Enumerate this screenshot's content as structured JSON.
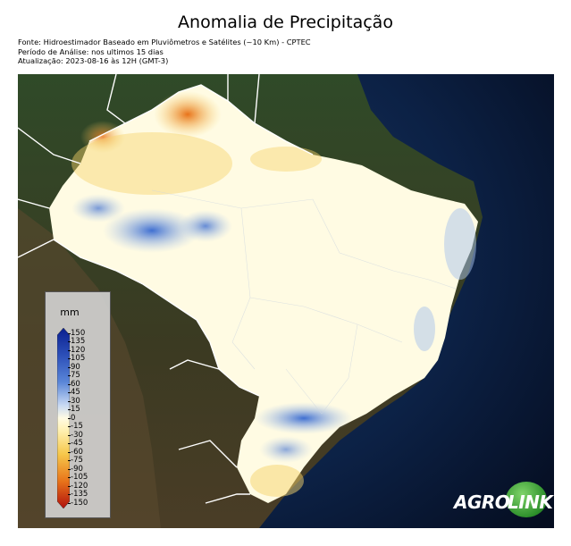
{
  "title": "Anomalia de Precipitação",
  "meta": {
    "source": "Fonte: Hidroestimador Baseado em Pluviômetros e Satélites (~10 Km) - CPTEC",
    "period": "Período de Análise: nos ultimos 15 dias",
    "updated": "Atualização: 2023-08-16 às 12H (GMT-3)"
  },
  "legend": {
    "unit": "mm",
    "ticks": [
      "150",
      "135",
      "120",
      "105",
      "90",
      "75",
      "60",
      "45",
      "30",
      "15",
      "0",
      "-15",
      "-30",
      "-45",
      "-60",
      "-75",
      "-90",
      "-105",
      "-120",
      "-135",
      "-150"
    ],
    "colors": {
      "max": "#0a1f8f",
      "high": "#3f6fd1",
      "mid_high": "#a9c4ec",
      "zero": "#fffbe3",
      "mid_low": "#f6d36b",
      "low": "#e8731a",
      "min": "#b0100e"
    }
  },
  "logo": {
    "part1": "AGRO",
    "part2": "LINK"
  }
}
